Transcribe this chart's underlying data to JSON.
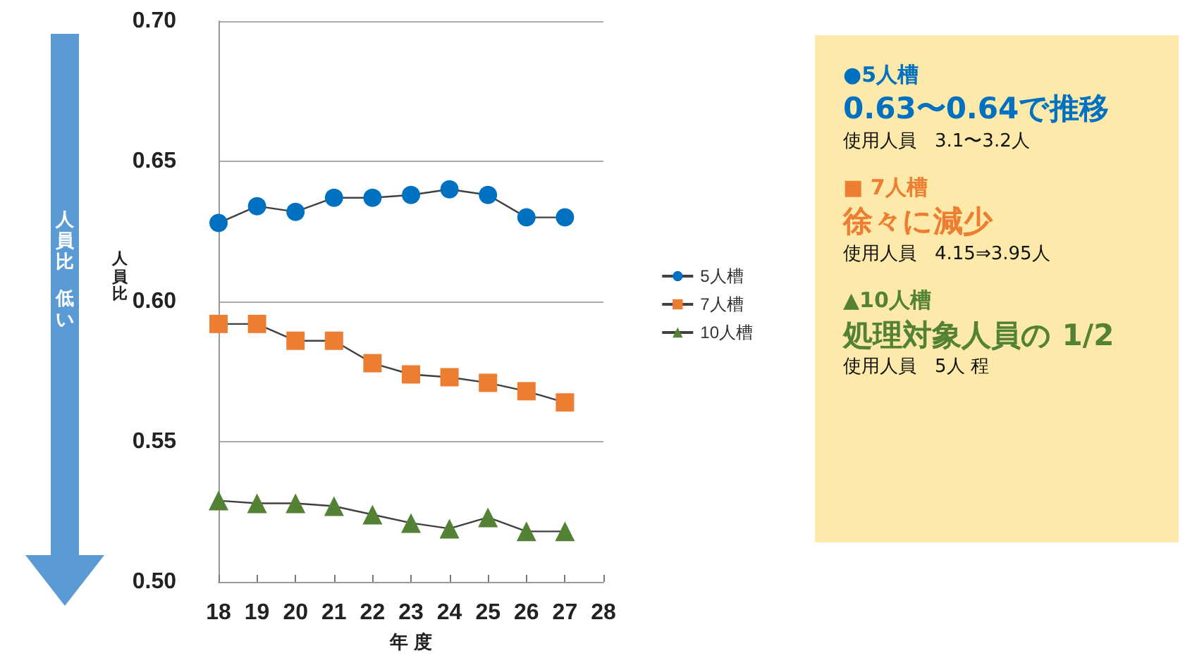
{
  "chart_data": {
    "type": "line",
    "x": [
      18,
      19,
      20,
      21,
      22,
      23,
      24,
      25,
      26,
      27
    ],
    "series": [
      {
        "name": "5人槽",
        "color": "#0070c0",
        "marker": "circle",
        "values": [
          0.628,
          0.634,
          0.632,
          0.637,
          0.637,
          0.638,
          0.64,
          0.638,
          0.63,
          0.63
        ]
      },
      {
        "name": "7人槽",
        "color": "#ed7d31",
        "marker": "square",
        "values": [
          0.592,
          0.592,
          0.586,
          0.586,
          0.578,
          0.574,
          0.573,
          0.571,
          0.568,
          0.564
        ]
      },
      {
        "name": "10人槽",
        "color": "#548235",
        "marker": "triangle",
        "values": [
          0.529,
          0.528,
          0.528,
          0.527,
          0.524,
          0.521,
          0.519,
          0.523,
          0.518,
          0.518
        ]
      }
    ],
    "xlim": [
      18,
      28
    ],
    "xticks": [
      18,
      19,
      20,
      21,
      22,
      23,
      24,
      25,
      26,
      27,
      28
    ],
    "ylim": [
      0.5,
      0.7
    ],
    "yticks": [
      {
        "value": 0.5,
        "label": "0.50"
      },
      {
        "value": 0.55,
        "label": "0.55"
      },
      {
        "value": 0.6,
        "label": "0.60"
      },
      {
        "value": 0.65,
        "label": "0.65"
      },
      {
        "value": 0.7,
        "label": "0.70"
      }
    ],
    "xlabel": "年 度",
    "ylabel": "人員比",
    "grid": "y",
    "legend": "right",
    "annotations": [
      "人員比",
      "低い",
      "●5人槽",
      "0.63〜0.64で推移",
      "使用人員　3.1〜3.2人",
      "■ 7人槽",
      "徐々に減少",
      "使用人員　4.15⇒3.95人",
      "▲10人槽",
      "処理対象人員の 1/2",
      "使用人員　5人 程"
    ]
  }
}
